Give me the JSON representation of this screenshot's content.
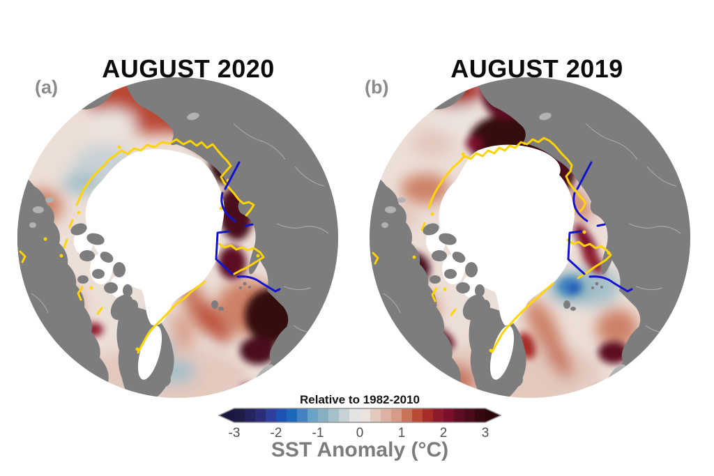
{
  "figure": {
    "panels": [
      {
        "label": "(a)",
        "title": "AUGUST 2020"
      },
      {
        "label": "(b)",
        "title": "AUGUST 2019"
      }
    ],
    "colorbar": {
      "subtitle": "Relative to 1982-2010",
      "title": "SST Anomaly (°C)",
      "tick_labels": [
        "-3",
        "-2",
        "-1",
        "0",
        "1",
        "2",
        "3"
      ],
      "colors": [
        "#1e1b45",
        "#25245c",
        "#2a2d77",
        "#2f3f9e",
        "#1f52b5",
        "#1e68bc",
        "#4383c2",
        "#6ba3c6",
        "#86b0bf",
        "#a6c0c9",
        "#c8d1d6",
        "#e2e3e4",
        "#ece3df",
        "#e3c8bd",
        "#ddb2a4",
        "#d79c88",
        "#c8745b",
        "#b94a35",
        "#a72c28",
        "#8e1a2e",
        "#7a102a",
        "#5f0d22",
        "#4a0b1a",
        "#360810"
      ],
      "left_arrow_color": "#191740",
      "right_arrow_color": "#2d060c",
      "outline_color": "#8f8f8f"
    },
    "map_colors": {
      "land": "#7d7d7d",
      "land_light": "#b2b2b2",
      "sea_ice": "#ffffff",
      "median_ice_edge": "#ffd400",
      "gate_lines": "#1313cf",
      "ocean_base": "#ecdfd7"
    }
  }
}
